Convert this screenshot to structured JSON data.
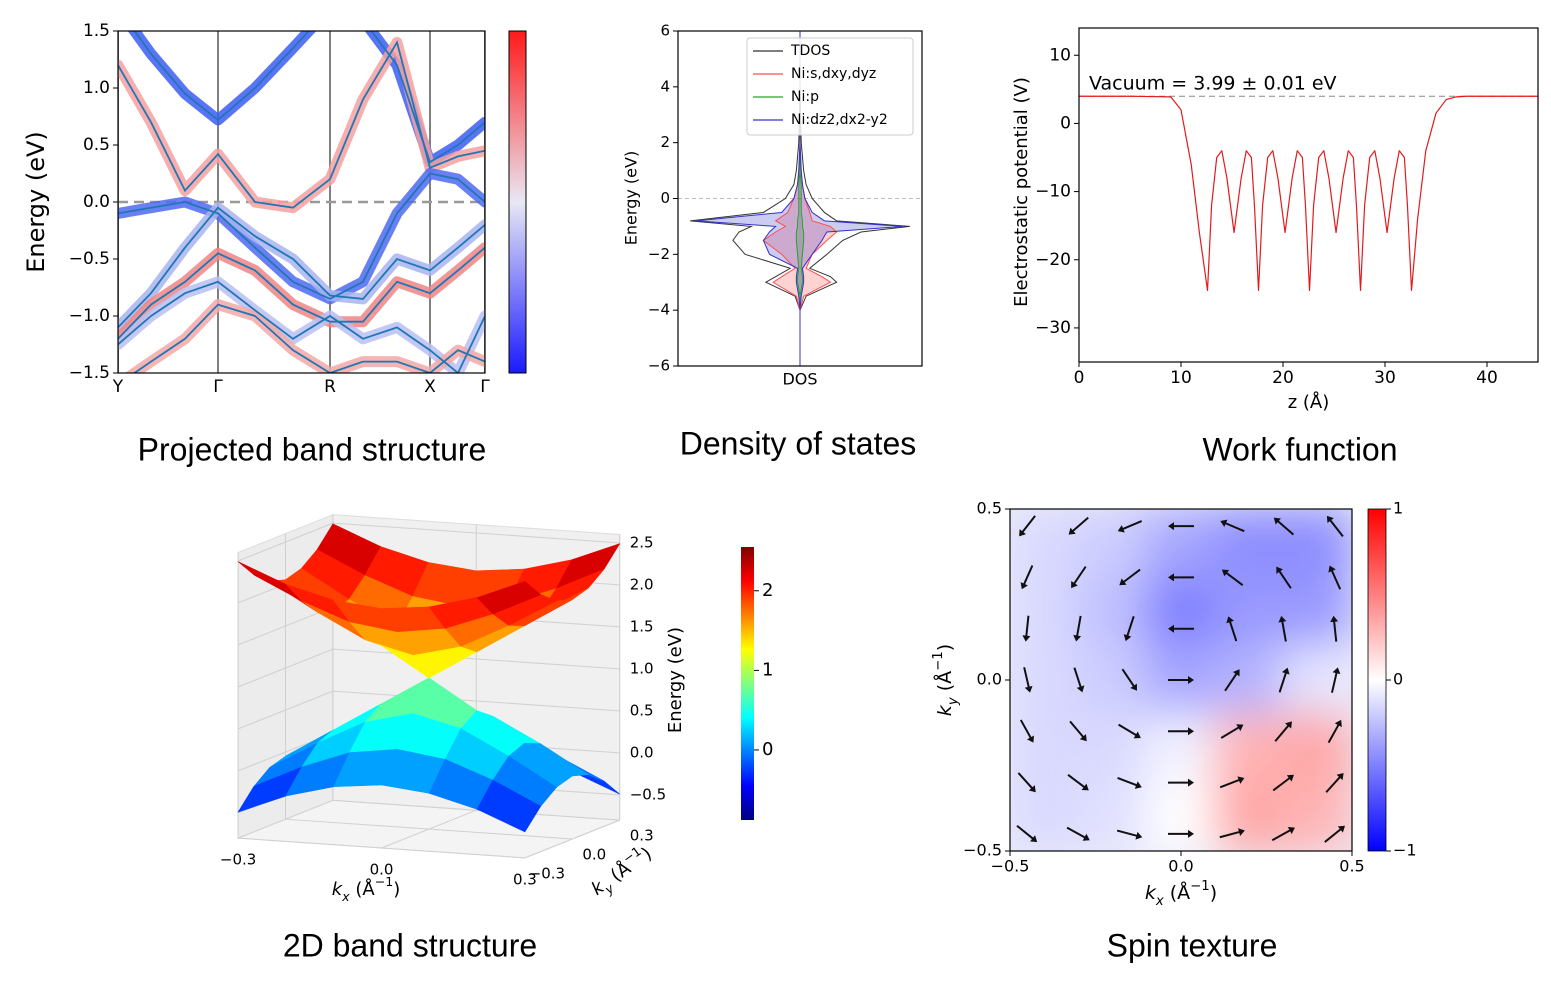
{
  "chart_data": [
    {
      "type": "fatband",
      "title": "Projected band structure",
      "ylabel": "Energy (eV)",
      "x": [
        0,
        0.33,
        0.67,
        1,
        1.37,
        1.75,
        2.12,
        2.45,
        2.79,
        3.12,
        3.4,
        3.67
      ],
      "xlim": [
        0,
        3.67
      ],
      "xticks": [
        {
          "value": 0,
          "label": "Y"
        },
        {
          "value": 1,
          "label": "Γ"
        },
        {
          "value": 2.12,
          "label": "R"
        },
        {
          "value": 3.12,
          "label": "X"
        },
        {
          "value": 3.67,
          "label": "Γ"
        }
      ],
      "ylim": [
        -1.5,
        1.5
      ],
      "yticks": [
        1.5,
        {
          "value": 1,
          "label": "1.0"
        },
        0.5,
        {
          "value": 0,
          "label": "0.0"
        },
        {
          "value": -0.5,
          "label": "−0.5"
        },
        {
          "value": -1,
          "label": "−1.0"
        },
        {
          "value": -1.5,
          "label": "−1.5"
        }
      ],
      "fermi_level": 0,
      "line_color": "#1f77b4",
      "series": [
        {
          "color": "#3d5cf5",
          "values": [
            1.7,
            1.3,
            0.95,
            0.72,
            1.0,
            1.35,
            1.7,
            1.6,
            1.2,
            0.35,
            0.5,
            0.7
          ]
        },
        {
          "color": "#f4a0a0",
          "values": [
            1.2,
            0.7,
            0.1,
            0.42,
            0.0,
            -0.05,
            0.2,
            0.9,
            1.4,
            0.3,
            0.4,
            0.45
          ]
        },
        {
          "color": "#4f6af2",
          "values": [
            -0.1,
            -0.05,
            0.0,
            -0.1,
            -0.4,
            -0.7,
            -0.85,
            -0.7,
            -0.1,
            0.25,
            0.2,
            0.0
          ]
        },
        {
          "color": "#a9b4f0",
          "values": [
            -1.1,
            -0.8,
            -0.4,
            -0.05,
            -0.3,
            -0.5,
            -0.82,
            -0.85,
            -0.5,
            -0.6,
            -0.4,
            -0.2
          ]
        },
        {
          "color": "#f08585",
          "values": [
            -1.2,
            -0.9,
            -0.7,
            -0.45,
            -0.6,
            -0.9,
            -1.05,
            -1.05,
            -0.7,
            -0.8,
            -0.6,
            -0.4
          ]
        },
        {
          "color": "#b8c0f2",
          "values": [
            -1.25,
            -1.0,
            -0.8,
            -0.7,
            -0.95,
            -1.2,
            -1.0,
            -1.2,
            -1.1,
            -1.3,
            -1.5,
            -1.0
          ]
        },
        {
          "color": "#f4a8a8",
          "values": [
            -1.6,
            -1.4,
            -1.2,
            -0.9,
            -1.0,
            -1.3,
            -1.5,
            -1.4,
            -1.4,
            -1.5,
            -1.3,
            -1.4
          ]
        }
      ]
    },
    {
      "type": "dos",
      "title": "Density of states",
      "ylabel": "Energy (eV)",
      "xlabel": "DOS",
      "y": [
        -6,
        -4,
        -3.5,
        -3,
        -2.8,
        -2.5,
        -2,
        -1.5,
        -1.2,
        -1,
        -0.8,
        -0.5,
        0,
        0.5,
        1,
        2,
        4,
        6
      ],
      "xlim": [
        -1,
        1
      ],
      "ylim": [
        -6,
        6
      ],
      "yticks": [
        {
          "value": -6,
          "label": "−6"
        },
        {
          "value": -4,
          "label": "−4"
        },
        {
          "value": -2,
          "label": "−2"
        },
        0,
        2,
        4,
        6
      ],
      "fermi_level": 0,
      "legend": "upper right",
      "series": [
        {
          "name": "TDOS",
          "color": "#333333",
          "values": [
            0,
            0,
            0.05,
            0.3,
            0.25,
            0.08,
            0.22,
            0.35,
            0.5,
            0.9,
            0.3,
            0.2,
            0.1,
            0.05,
            0.03,
            0.01,
            0,
            0
          ],
          "values_down": [
            0,
            0,
            -0.04,
            -0.28,
            -0.2,
            -0.08,
            -0.45,
            -0.55,
            -0.5,
            -0.4,
            -0.9,
            -0.3,
            -0.12,
            -0.05,
            -0.03,
            -0.01,
            0,
            0
          ]
        },
        {
          "name": "Ni:s,dxy,dyz",
          "color": "#ff4d4d",
          "values": [
            0,
            0,
            0.03,
            0.25,
            0.18,
            0.05,
            0.1,
            0.22,
            0.3,
            0.25,
            0.1,
            0.08,
            0.04,
            0.02,
            0.01,
            0,
            0,
            0
          ],
          "values_down": [
            0,
            0,
            -0.03,
            -0.22,
            -0.15,
            -0.04,
            -0.15,
            -0.3,
            -0.2,
            -0.12,
            -0.2,
            -0.1,
            -0.05,
            -0.02,
            -0.01,
            0,
            0,
            0
          ]
        },
        {
          "name": "Ni:p",
          "color": "#2ca02c",
          "values": [
            0,
            0,
            0,
            0.02,
            0.02,
            0.01,
            0.02,
            0.03,
            0.03,
            0.02,
            0.02,
            0.01,
            0.01,
            0.01,
            0,
            0,
            0,
            0
          ],
          "values_down": [
            0,
            0,
            0,
            -0.02,
            -0.02,
            -0.01,
            -0.02,
            -0.03,
            -0.03,
            -0.02,
            -0.02,
            -0.01,
            -0.01,
            -0.01,
            0,
            0,
            0,
            0
          ]
        },
        {
          "name": "Ni:dz2,dx2-y2",
          "color": "#3333cc",
          "values": [
            0,
            0,
            0.01,
            0.03,
            0.03,
            0.02,
            0.1,
            0.18,
            0.22,
            0.85,
            0.2,
            0.1,
            0.04,
            0.02,
            0.01,
            0,
            0,
            0
          ],
          "values_down": [
            0,
            0,
            -0.01,
            -0.03,
            -0.03,
            -0.02,
            -0.25,
            -0.3,
            -0.25,
            -0.2,
            -0.85,
            -0.15,
            -0.05,
            -0.02,
            -0.01,
            0,
            0,
            0
          ]
        }
      ]
    },
    {
      "type": "line",
      "title": "Work function",
      "xlabel": "z (Å)",
      "ylabel": "Electrostatic potential (V)",
      "xlim": [
        0,
        45
      ],
      "xticks": [
        0,
        10,
        20,
        30,
        40
      ],
      "ylim": [
        -35,
        14
      ],
      "yticks": [
        10,
        0,
        {
          "value": -10,
          "label": "−10"
        },
        {
          "value": -20,
          "label": "−20"
        },
        {
          "value": -30,
          "label": "−30"
        }
      ],
      "annotation": "Vacuum = 3.99 ± 0.01 eV",
      "vacuum_level": 3.99,
      "color": "#e31a1c",
      "x": [
        0,
        5,
        9,
        10,
        11,
        11.8,
        12.6,
        13.0,
        13.5,
        14.0,
        14.5,
        15.2,
        15.9,
        16.4,
        16.9,
        17.2,
        17.6,
        18.0,
        18.5,
        19.0,
        19.5,
        20.2,
        20.9,
        21.4,
        21.9,
        22.2,
        22.6,
        23.0,
        23.5,
        24.0,
        24.5,
        25.2,
        25.9,
        26.4,
        26.9,
        27.2,
        27.6,
        28.0,
        28.5,
        29.0,
        29.5,
        30.2,
        30.9,
        31.4,
        31.9,
        32.2,
        32.6,
        33.2,
        34,
        35,
        36,
        37,
        38,
        45
      ],
      "values": [
        3.99,
        3.99,
        3.9,
        2,
        -6,
        -16,
        -24.5,
        -12,
        -5,
        -4,
        -8,
        -16,
        -8,
        -4,
        -5,
        -12,
        -24.5,
        -12,
        -5,
        -4,
        -8,
        -16,
        -8,
        -4,
        -5,
        -12,
        -24.5,
        -12,
        -5,
        -4,
        -8,
        -16,
        -8,
        -4,
        -5,
        -12,
        -24.5,
        -12,
        -5,
        -4,
        -8,
        -16,
        -8,
        -4,
        -5,
        -12,
        -24.5,
        -14,
        -4,
        1.5,
        3.5,
        3.9,
        3.99,
        3.99
      ]
    },
    {
      "type": "surface",
      "title": "2D band structure",
      "zlabel": "Energy (eV)",
      "xlabel": [
        "k",
        "x",
        " (Å",
        "−1",
        ")"
      ],
      "ylabel": [
        "k",
        "y",
        " (Å",
        "−1",
        ")"
      ],
      "kx": [
        -0.3,
        -0.2,
        -0.1,
        0,
        0.1,
        0.2,
        0.3
      ],
      "ky": [
        -0.3,
        -0.2,
        -0.1,
        0,
        0.1,
        0.2,
        0.3
      ],
      "xticks": [
        {
          "value": -0.3,
          "label": "−0.3"
        },
        {
          "value": 0,
          "label": "0.0"
        },
        0.3
      ],
      "yticks": [
        {
          "value": -0.3,
          "label": "−0.3"
        },
        {
          "value": 0,
          "label": "0.0"
        },
        0.3
      ],
      "zlim": [
        -0.8,
        2.6
      ],
      "zticks": [
        2.5,
        {
          "value": 2,
          "label": "2.0"
        },
        1.5,
        {
          "value": 1,
          "label": "1.0"
        },
        0.5,
        {
          "value": 0,
          "label": "0.0"
        },
        {
          "value": -0.5,
          "label": "−0.5"
        }
      ],
      "clim": [
        -0.88,
        2.55
      ],
      "cticks": [
        2,
        1,
        0
      ],
      "colormap": "jet",
      "z_upper": [
        [
          2.49,
          2.26,
          2.11,
          2.05,
          2.11,
          2.26,
          2.49
        ],
        [
          2.26,
          1.99,
          1.78,
          1.7,
          1.78,
          1.99,
          2.26
        ],
        [
          2.11,
          1.78,
          1.49,
          1.35,
          1.49,
          1.78,
          2.11
        ],
        [
          2.05,
          1.7,
          1.35,
          1.0,
          1.35,
          1.7,
          2.05
        ],
        [
          2.11,
          1.78,
          1.49,
          1.35,
          1.49,
          1.78,
          2.11
        ],
        [
          2.26,
          1.99,
          1.78,
          1.7,
          1.78,
          1.99,
          2.26
        ],
        [
          2.49,
          2.26,
          2.11,
          2.05,
          2.11,
          2.26,
          2.49
        ]
      ],
      "z_lower": [
        [
          -0.49,
          -0.26,
          -0.11,
          -0.05,
          -0.11,
          -0.26,
          -0.49
        ],
        [
          -0.26,
          0.01,
          0.22,
          0.3,
          0.22,
          0.01,
          -0.26
        ],
        [
          -0.11,
          0.22,
          0.51,
          0.65,
          0.51,
          0.22,
          -0.11
        ],
        [
          -0.05,
          0.3,
          0.65,
          1.0,
          0.65,
          0.3,
          -0.05
        ],
        [
          -0.11,
          0.22,
          0.51,
          0.65,
          0.51,
          0.22,
          -0.11
        ],
        [
          -0.26,
          0.01,
          0.22,
          0.3,
          0.22,
          0.01,
          -0.26
        ],
        [
          -0.49,
          -0.26,
          -0.11,
          -0.05,
          -0.11,
          -0.26,
          -0.49
        ]
      ]
    },
    {
      "type": "quiver",
      "title": "Spin texture",
      "xlabel": [
        "k",
        "x",
        " (Å",
        "−1",
        ")"
      ],
      "ylabel": [
        "k",
        "y",
        " (Å",
        "−1",
        ")"
      ],
      "xlim": [
        -0.5,
        0.5
      ],
      "ylim": [
        -0.5,
        0.5
      ],
      "xticks": [
        {
          "value": -0.5,
          "label": "−0.5"
        },
        {
          "value": 0,
          "label": "0.0"
        },
        0.5
      ],
      "yticks": [
        {
          "value": -0.5,
          "label": "−0.5"
        },
        {
          "value": 0,
          "label": "0.0"
        },
        0.5
      ],
      "clim": [
        -1,
        1
      ],
      "cticks": [
        1,
        0,
        {
          "value": -1,
          "label": "−1"
        }
      ],
      "x": [
        -0.45,
        -0.3,
        -0.15,
        0,
        0.15,
        0.3,
        0.45
      ],
      "y": [
        0.45,
        0.3,
        0.15,
        0,
        -0.15,
        -0.3,
        -0.45
      ],
      "angles": [
        [
          -128,
          -139,
          -157,
          180,
          157,
          139,
          128
        ],
        [
          -114,
          -124,
          -143,
          180,
          143,
          124,
          114
        ],
        [
          -96,
          -100,
          -108,
          180,
          108,
          100,
          96
        ],
        [
          -77,
          -72,
          -56,
          0,
          56,
          72,
          77
        ],
        [
          -61,
          -50,
          -31,
          0,
          31,
          50,
          61
        ],
        [
          -48,
          -37,
          -21,
          0,
          21,
          37,
          48
        ],
        [
          -39,
          -29,
          -15,
          0,
          15,
          29,
          39
        ]
      ],
      "sz_x": [
        -0.4,
        -0.2,
        0,
        0.2,
        0.4
      ],
      "sz_y": [
        0.4,
        0.2,
        0,
        -0.2,
        -0.4
      ],
      "sz": [
        [
          -0.15,
          -0.2,
          -0.35,
          -0.45,
          -0.45
        ],
        [
          -0.15,
          -0.25,
          -0.5,
          -0.4,
          -0.4
        ],
        [
          -0.15,
          -0.2,
          -0.35,
          -0.3,
          -0.1
        ],
        [
          -0.15,
          -0.15,
          -0.05,
          0.3,
          0.35
        ],
        [
          -0.15,
          -0.12,
          0.0,
          0.35,
          0.3
        ]
      ]
    }
  ]
}
